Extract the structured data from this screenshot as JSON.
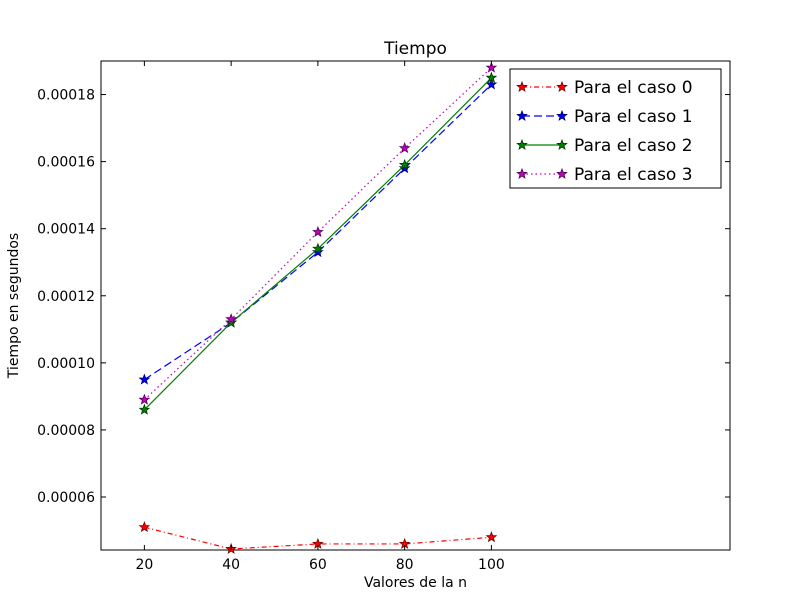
{
  "chart_data": {
    "type": "line",
    "title": "Tiempo",
    "xlabel": "Valores de la n",
    "ylabel": "Tiempo en segundos",
    "x": [
      20,
      40,
      60,
      80,
      100
    ],
    "xlim": [
      10,
      155
    ],
    "ylim": [
      4.42e-05,
      0.00019
    ],
    "xticks": [
      20,
      40,
      60,
      80,
      100
    ],
    "xtick_labels": [
      "20",
      "40",
      "60",
      "80",
      "100"
    ],
    "yticks": [
      6e-05,
      8e-05,
      0.0001,
      0.00012,
      0.00014,
      0.00016,
      0.00018
    ],
    "ytick_labels": [
      "0.00006",
      "0.00008",
      "0.00010",
      "0.00012",
      "0.00014",
      "0.00016",
      "0.00018"
    ],
    "grid": false,
    "legend_position": "top-right",
    "series": [
      {
        "name": "Para el caso 0",
        "color": "#ff0000",
        "style": "dash-dot",
        "marker": "star",
        "values": [
          5.1e-05,
          4.45e-05,
          4.6e-05,
          4.6e-05,
          4.8e-05
        ]
      },
      {
        "name": "Para el caso 1",
        "color": "#0000ff",
        "style": "dashed",
        "marker": "star",
        "values": [
          9.5e-05,
          0.000112,
          0.000133,
          0.000158,
          0.000183
        ]
      },
      {
        "name": "Para el caso 2",
        "color": "#008000",
        "style": "solid",
        "marker": "star",
        "values": [
          8.6e-05,
          0.000112,
          0.000134,
          0.000159,
          0.000185
        ]
      },
      {
        "name": "Para el caso 3",
        "color": "#bf00bf",
        "style": "dotted",
        "marker": "star",
        "values": [
          8.9e-05,
          0.000113,
          0.000139,
          0.000164,
          0.000188
        ]
      }
    ]
  }
}
